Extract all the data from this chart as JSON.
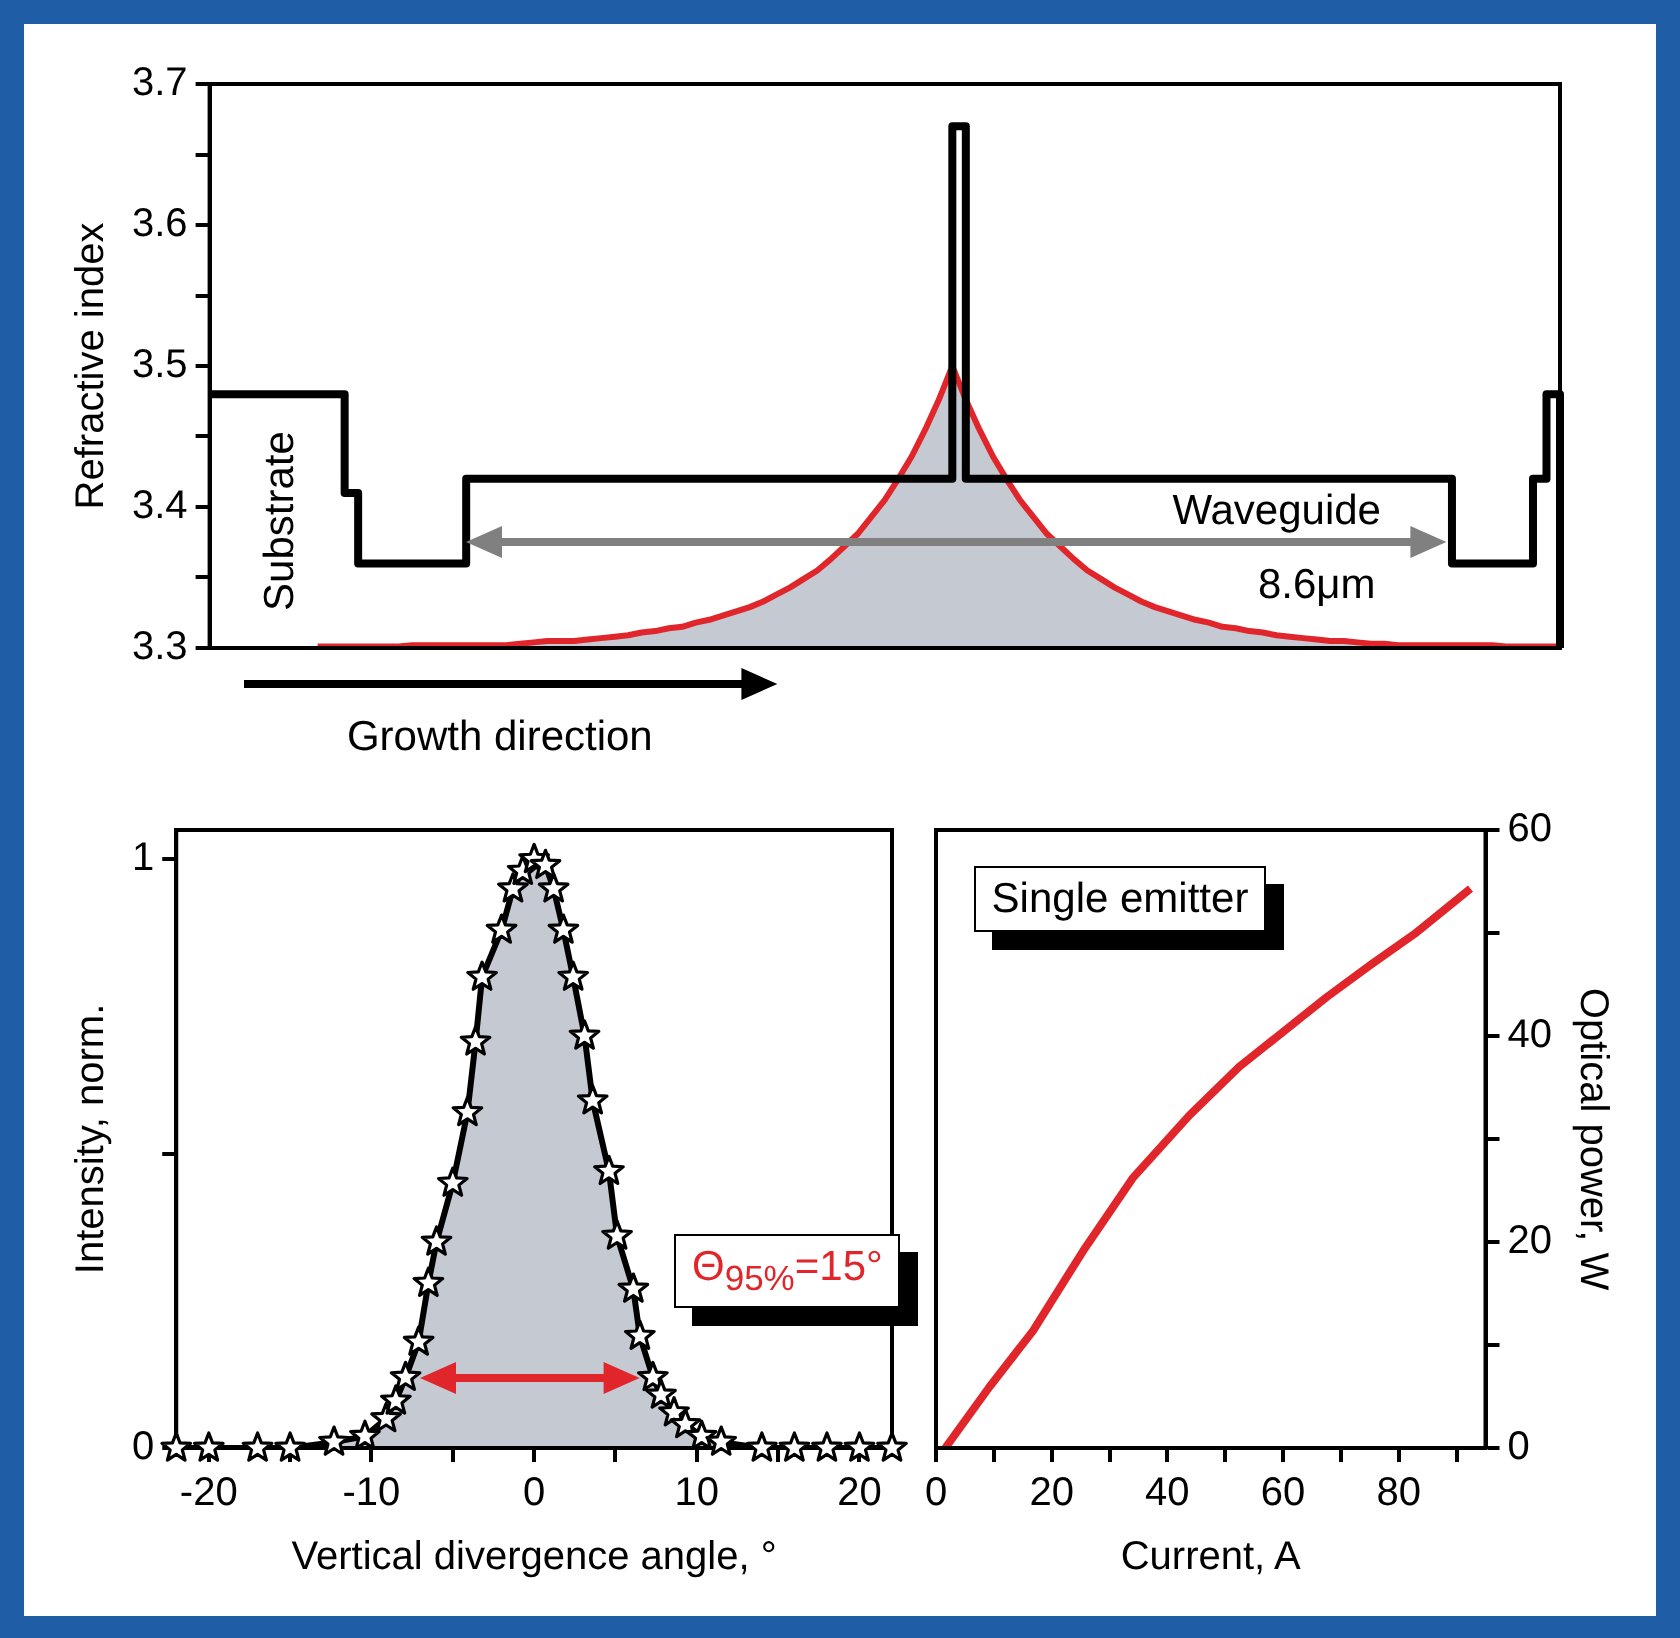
{
  "chart_data": [
    {
      "type": "step",
      "ylabel": "Refractive index",
      "ylim": [
        3.3,
        3.7
      ],
      "yticks": [
        3.3,
        {
          "value": 3.35,
          "label": null
        },
        3.4,
        {
          "value": 3.45,
          "label": null
        },
        3.5,
        {
          "value": 3.55,
          "label": null
        },
        3.6,
        {
          "value": 3.65,
          "label": null
        },
        3.7
      ],
      "tick_labels": "y",
      "grid": false,
      "legend": false,
      "categories": [
        null,
        null,
        null,
        null,
        null,
        null,
        null,
        null,
        null,
        null,
        null,
        null,
        null,
        null,
        null,
        null,
        null,
        null,
        null,
        null,
        null,
        null,
        null,
        null,
        null,
        null,
        null,
        null,
        null,
        null,
        null,
        null,
        null,
        null,
        null,
        null,
        null,
        null,
        null,
        null,
        null,
        null,
        null,
        null,
        null,
        null,
        null,
        null,
        null,
        null,
        null,
        null,
        null,
        null,
        null,
        null,
        null,
        null,
        null,
        null,
        null,
        null,
        null,
        null,
        null,
        null,
        null,
        null,
        null,
        null,
        null,
        null,
        null,
        null,
        null,
        null,
        null,
        null,
        null,
        null,
        null,
        null,
        null,
        null,
        null,
        null,
        null,
        null,
        null,
        null,
        null,
        null,
        null,
        null,
        null,
        null,
        null,
        null,
        null,
        null,
        null
      ],
      "series": [
        {
          "type": "step",
          "color": "#000000",
          "values": [
            3.48,
            3.48,
            3.48,
            3.48,
            3.48,
            3.48,
            3.48,
            3.48,
            3.48,
            3.48,
            3.41,
            3.36,
            3.36,
            3.36,
            3.36,
            3.36,
            3.36,
            3.36,
            3.36,
            3.42,
            3.42,
            3.42,
            3.42,
            3.42,
            3.42,
            3.42,
            3.42,
            3.42,
            3.42,
            3.42,
            3.42,
            3.42,
            3.42,
            3.42,
            3.42,
            3.42,
            3.42,
            3.42,
            3.42,
            3.42,
            3.42,
            3.42,
            3.42,
            3.42,
            3.42,
            3.42,
            3.42,
            3.42,
            3.42,
            3.42,
            3.42,
            3.42,
            3.42,
            3.42,
            3.42,
            3.67,
            3.42,
            3.42,
            3.42,
            3.42,
            3.42,
            3.42,
            3.42,
            3.42,
            3.42,
            3.42,
            3.42,
            3.42,
            3.42,
            3.42,
            3.42,
            3.42,
            3.42,
            3.42,
            3.42,
            3.42,
            3.42,
            3.42,
            3.42,
            3.42,
            3.42,
            3.42,
            3.42,
            3.42,
            3.42,
            3.42,
            3.42,
            3.42,
            3.42,
            3.42,
            3.42,
            3.42,
            3.36,
            3.36,
            3.36,
            3.36,
            3.36,
            3.36,
            3.42,
            3.48,
            3.3
          ]
        },
        {
          "type": "area",
          "color": "#e0262b",
          "values": [
            null,
            null,
            null,
            null,
            null,
            null,
            null,
            null,
            3.301,
            3.301,
            3.301,
            3.301,
            3.301,
            3.301,
            3.301,
            3.302,
            3.302,
            3.302,
            3.302,
            3.302,
            3.302,
            3.302,
            3.302,
            3.303,
            3.304,
            3.305,
            3.305,
            3.305,
            3.306,
            3.307,
            3.308,
            3.309,
            3.311,
            3.312,
            3.314,
            3.315,
            3.318,
            3.32,
            3.323,
            3.326,
            3.329,
            3.333,
            3.338,
            3.343,
            3.349,
            3.355,
            3.363,
            3.372,
            3.381,
            3.393,
            3.405,
            3.42,
            3.436,
            3.455,
            3.476,
            3.5,
            3.476,
            3.455,
            3.436,
            3.42,
            3.405,
            3.393,
            3.381,
            3.372,
            3.363,
            3.355,
            3.349,
            3.343,
            3.338,
            3.333,
            3.329,
            3.326,
            3.323,
            3.32,
            3.318,
            3.315,
            3.314,
            3.312,
            3.311,
            3.309,
            3.308,
            3.307,
            3.306,
            3.305,
            3.305,
            3.304,
            3.303,
            3.303,
            3.302,
            3.302,
            3.302,
            3.302,
            3.302,
            3.302,
            3.302,
            3.302,
            3.301,
            3.301,
            3.301,
            3.301,
            3.301
          ]
        }
      ],
      "annotations": [
        "Substrate",
        "Waveguide",
        "8.6μm",
        "Growth direction"
      ]
    },
    {
      "type": "area",
      "xlabel": "Vertical divergence angle, °",
      "ylabel": "Intensity, norm.",
      "xlim": [
        -22,
        22
      ],
      "xticks": [
        -20,
        {
          "value": -15,
          "label": null
        },
        -10,
        {
          "value": -5,
          "label": null
        },
        0,
        {
          "value": 5,
          "label": null
        },
        10,
        {
          "value": 15,
          "label": null
        },
        20
      ],
      "ylim": [
        0,
        1.05
      ],
      "yticks": [
        0,
        {
          "value": 0.5,
          "label": null
        },
        1
      ],
      "grid": false,
      "legend": false,
      "marker": "star",
      "series": [
        {
          "color": "#000000",
          "x": [
            -22,
            -20,
            -17,
            -15,
            -12.3,
            -10.4,
            -9.1,
            -8.5,
            -7.9,
            -7.1,
            -6.5,
            -6,
            -5,
            -4.1,
            -3.6,
            -3.2,
            -2,
            -1.3,
            -0.7,
            0,
            0.7,
            1.2,
            1.8,
            2.4,
            3.1,
            3.6,
            4.6,
            5.1,
            6.1,
            6.5,
            7.3,
            7.8,
            8.6,
            9.3,
            10.3,
            11.5,
            14,
            16,
            18,
            20,
            22
          ],
          "values": [
            0,
            0,
            0,
            0,
            0.01,
            0.02,
            0.05,
            0.08,
            0.12,
            0.18,
            0.28,
            0.35,
            0.45,
            0.57,
            0.69,
            0.8,
            0.88,
            0.95,
            0.98,
            1,
            0.99,
            0.95,
            0.88,
            0.8,
            0.7,
            0.59,
            0.47,
            0.36,
            0.27,
            0.19,
            0.12,
            0.09,
            0.06,
            0.04,
            0.02,
            0.01,
            0,
            0,
            0,
            0,
            0
          ]
        }
      ],
      "annotations": [
        "Θ$_{95%}$=15°"
      ]
    },
    {
      "type": "line",
      "xlabel": "Current, A",
      "y2label": "Optical power, W",
      "xlim": [
        0,
        95
      ],
      "xticks": [
        0,
        {
          "value": 10,
          "label": null
        },
        20,
        {
          "value": 30,
          "label": null
        },
        40,
        {
          "value": 50,
          "label": null
        },
        60,
        {
          "value": 70,
          "label": null
        },
        80,
        {
          "value": 90,
          "label": null
        }
      ],
      "y2lim": [
        0,
        60
      ],
      "y2ticks": [
        0,
        {
          "value": 10,
          "label": null
        },
        20,
        {
          "value": 30,
          "label": null
        },
        40,
        {
          "value": 50,
          "label": null
        },
        60
      ],
      "grid": false,
      "legend": false,
      "series": [
        {
          "color": "#e0262b",
          "axis": "y2",
          "x": [
            1.6,
            9.2,
            16.8,
            25.4,
            34,
            43.8,
            52.4,
            67.6,
            75.1,
            82.7,
            92.4
          ],
          "values": [
            0,
            5.9,
            11.4,
            19.1,
            26.2,
            32.3,
            37,
            43.8,
            46.9,
            49.9,
            54.3
          ]
        }
      ],
      "annotations": [
        "Single emitter"
      ]
    }
  ]
}
